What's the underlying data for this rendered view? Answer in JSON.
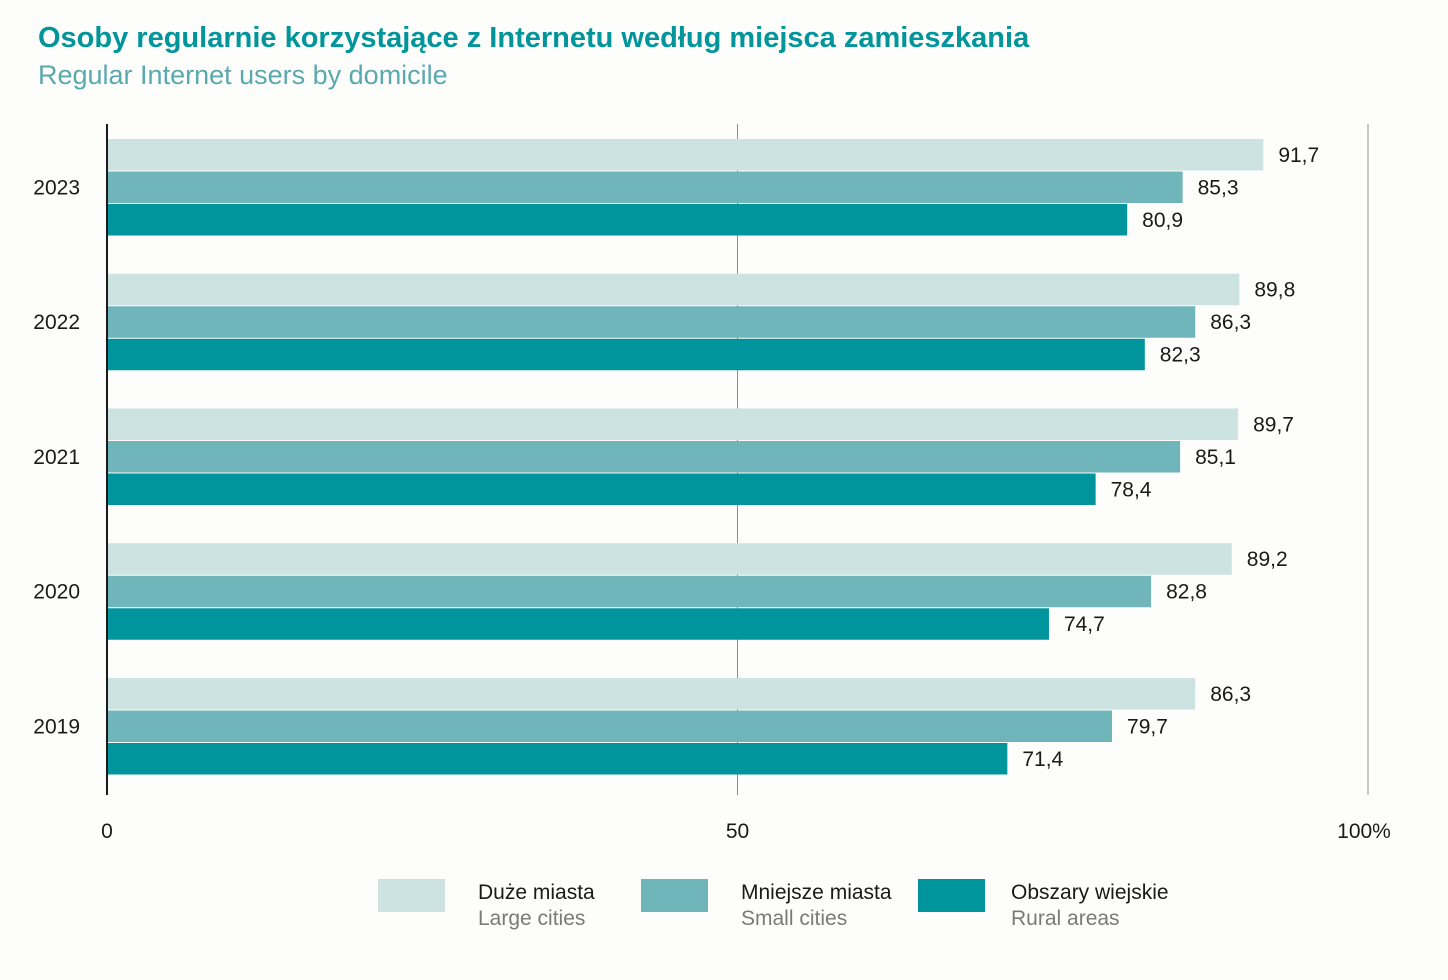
{
  "title": "Osoby regularnie korzystające z Internetu według miejsca zamieszkania",
  "subtitle": "Regular Internet users by domicile",
  "chart_data": {
    "type": "bar",
    "orientation": "horizontal",
    "categories": [
      "2023",
      "2022",
      "2021",
      "2020",
      "2019"
    ],
    "series": [
      {
        "name": "Duże miasta",
        "name_en": "Large cities",
        "color": "#cde3e2",
        "values": [
          91.7,
          89.8,
          89.7,
          89.2,
          86.3
        ],
        "labels": [
          "91,7",
          "89,8",
          "89,7",
          "89,2",
          "86,3"
        ]
      },
      {
        "name": "Mniejsze miasta",
        "name_en": "Small cities",
        "color": "#70b5b9",
        "values": [
          85.3,
          86.3,
          85.1,
          82.8,
          79.7
        ],
        "labels": [
          "85,3",
          "86,3",
          "85,1",
          "82,8",
          "79,7"
        ]
      },
      {
        "name": "Obszary wiejskie",
        "name_en": "Rural areas",
        "color": "#00959c",
        "values": [
          80.9,
          82.3,
          78.4,
          74.7,
          71.4
        ],
        "labels": [
          "80,9",
          "82,3",
          "78,4",
          "74,7",
          "71,4"
        ]
      }
    ],
    "xlim": [
      0,
      100
    ],
    "x_ticks": [
      "0",
      "50",
      "100%"
    ],
    "grid": true,
    "legend_position": "bottom"
  }
}
